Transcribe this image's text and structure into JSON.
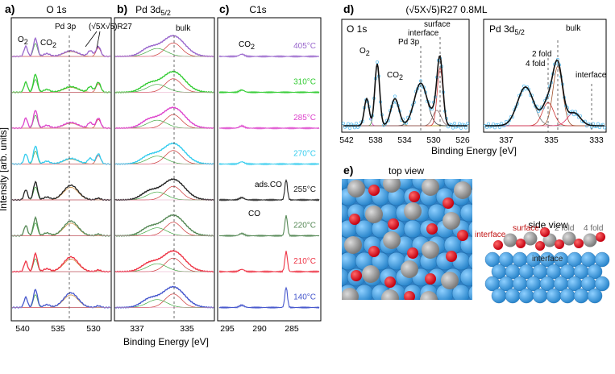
{
  "panel_letters": {
    "a": "a)",
    "b": "b)",
    "c": "c)",
    "d": "d)",
    "e": "e)"
  },
  "panel_a": {
    "title": "O 1s",
    "annotations": {
      "o2": "O",
      "o2_sub": "2",
      "co2": "CO",
      "co2_sub": "2",
      "pd3p": "Pd 3p",
      "phase": "(√5X√5)R27"
    },
    "xticks": [
      "540",
      "535",
      "530"
    ]
  },
  "panel_b": {
    "title": "Pd 3d",
    "title_sub": "5/2",
    "annotations": {
      "bulk": "bulk"
    },
    "xticks": [
      "337",
      "335"
    ]
  },
  "panel_c": {
    "title": "C1s",
    "annotations": {
      "co2": "CO",
      "co2_sub": "2",
      "ads_co": "ads.CO",
      "co": "CO"
    },
    "xticks": [
      "295",
      "290",
      "285"
    ],
    "temperatures": [
      {
        "label": "405°C",
        "color": "#9966cc"
      },
      {
        "label": "310°C",
        "color": "#33cc33"
      },
      {
        "label": "285°C",
        "color": "#dd44cc"
      },
      {
        "label": "270°C",
        "color": "#33ccee"
      },
      {
        "label": "255°C",
        "color": "#222222"
      },
      {
        "label": "220°C",
        "color": "#558855"
      },
      {
        "label": "210°C",
        "color": "#ee3344"
      },
      {
        "label": "140°C",
        "color": "#4455cc"
      }
    ]
  },
  "shared_axes": {
    "ylabel": "Intensity [arb. units]",
    "xlabel": "Binding Energy [eV]"
  },
  "panel_d": {
    "title": "(√5X√5)R27 0.8ML",
    "left": {
      "title": "O 1s",
      "annotations": {
        "o2": "O",
        "o2_sub": "2",
        "co2": "CO",
        "co2_sub": "2",
        "pd3p": "Pd 3p",
        "surface": "surface",
        "interface": "interface"
      },
      "xticks": [
        "542",
        "538",
        "534",
        "530",
        "526"
      ]
    },
    "right": {
      "title": "Pd 3d",
      "title_sub": "5/2",
      "annotations": {
        "bulk": "bulk",
        "twofold": "2 fold",
        "fourfold": "4 fold",
        "interface": "interface"
      },
      "xticks": [
        "337",
        "335",
        "333"
      ]
    },
    "xlabel": "Binding Energy [eV]"
  },
  "panel_e": {
    "top_view": "top view",
    "side_view": "side view",
    "side_labels": {
      "interface_red": "interface",
      "surface": "surface",
      "twofold": "2 fold",
      "fourfold": "4 fold",
      "interface_bottom": "interface"
    }
  },
  "colors": {
    "pd_substrate": "#3d9de0",
    "pd_light": "#66b8ee",
    "oxygen": "#e8202a",
    "palladium_oxide": "#9a9a9a",
    "panel_edge": "#000000"
  }
}
